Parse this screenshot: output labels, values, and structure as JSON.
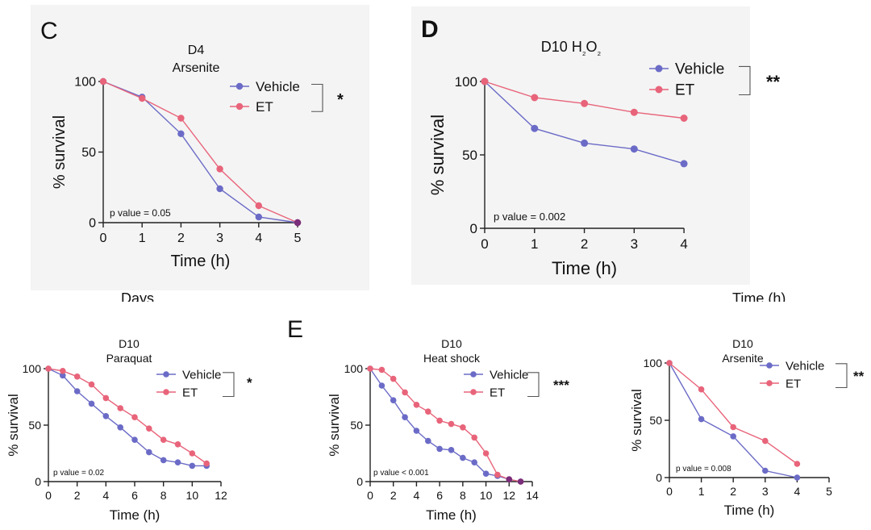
{
  "colors": {
    "vehicle": "#6b6bc7",
    "et": "#e8647a",
    "axis": "#222222",
    "overlap": "#7a2d7a"
  },
  "panel_labels": {
    "c": "C",
    "d": "D",
    "e": "E"
  },
  "cropped_labels": {
    "days": "Days",
    "time_h": "Time (h)"
  },
  "chart_data": [
    {
      "id": "C",
      "type": "line",
      "title": [
        "D4",
        "Arsenite"
      ],
      "xlabel": "Time (h)",
      "ylabel": "% survival",
      "xlim": [
        0,
        5
      ],
      "ylim": [
        0,
        100
      ],
      "xticks": [
        0,
        1,
        2,
        3,
        4,
        5
      ],
      "yticks": [
        0,
        50,
        100
      ],
      "legend": [
        "Vehicle",
        "ET"
      ],
      "significance": "*",
      "annotation": "p value = 0.05",
      "series": [
        {
          "name": "Vehicle",
          "x": [
            0,
            1,
            2,
            3,
            4,
            5
          ],
          "values": [
            100,
            89,
            63,
            24,
            4,
            0
          ]
        },
        {
          "name": "ET",
          "x": [
            0,
            1,
            2,
            3,
            4,
            5
          ],
          "values": [
            100,
            88,
            74,
            38,
            12,
            0
          ]
        }
      ]
    },
    {
      "id": "D",
      "type": "line",
      "title": [
        "D10 H₂O₂"
      ],
      "xlabel": "Time (h)",
      "ylabel": "% survival",
      "xlim": [
        0,
        4.5
      ],
      "ylim": [
        0,
        100
      ],
      "xticks": [
        0,
        1,
        2,
        3,
        4
      ],
      "yticks": [
        0,
        50,
        100
      ],
      "legend": [
        "Vehicle",
        "ET"
      ],
      "significance": "**",
      "annotation": "p value = 0.002",
      "series": [
        {
          "name": "Vehicle",
          "x": [
            0,
            1,
            2,
            3,
            4
          ],
          "values": [
            100,
            68,
            58,
            54,
            44
          ]
        },
        {
          "name": "ET",
          "x": [
            0,
            1,
            2,
            3,
            4
          ],
          "values": [
            100,
            89,
            85,
            79,
            75
          ]
        }
      ]
    },
    {
      "id": "E1",
      "type": "line",
      "title": [
        "D10",
        "Paraquat"
      ],
      "xlabel": "Time (h)",
      "ylabel": "% survival",
      "xlim": [
        0,
        12
      ],
      "ylim": [
        0,
        100
      ],
      "xticks": [
        0,
        2,
        4,
        6,
        8,
        10,
        12
      ],
      "yticks": [
        0,
        50,
        100
      ],
      "legend": [
        "Vehicle",
        "ET"
      ],
      "significance": "*",
      "annotation": "p value = 0.02",
      "series": [
        {
          "name": "Vehicle",
          "x": [
            0,
            1,
            2,
            3,
            4,
            5,
            6,
            7,
            8,
            9,
            10,
            11
          ],
          "values": [
            100,
            94,
            80,
            69,
            58,
            48,
            37,
            26,
            19,
            17,
            14,
            14
          ]
        },
        {
          "name": "ET",
          "x": [
            0,
            1,
            2,
            3,
            4,
            5,
            6,
            7,
            8,
            9,
            10,
            11
          ],
          "values": [
            100,
            98,
            93,
            86,
            74,
            65,
            57,
            47,
            37,
            33,
            25,
            16
          ]
        }
      ]
    },
    {
      "id": "E2",
      "type": "line",
      "title": [
        "D10",
        "Heat shock"
      ],
      "xlabel": "Time (h)",
      "ylabel": "% survival",
      "xlim": [
        0,
        14
      ],
      "ylim": [
        0,
        100
      ],
      "xticks": [
        0,
        2,
        4,
        6,
        8,
        10,
        12,
        14
      ],
      "yticks": [
        0,
        50,
        100
      ],
      "legend": [
        "Vehicle",
        "ET"
      ],
      "significance": "***",
      "annotation": "p value < 0.001",
      "series": [
        {
          "name": "Vehicle",
          "x": [
            0,
            1,
            2,
            3,
            4,
            5,
            6,
            7,
            8,
            9,
            10,
            11,
            12,
            13
          ],
          "values": [
            100,
            85,
            72,
            57,
            45,
            36,
            29,
            28,
            21,
            17,
            7,
            5,
            2,
            0
          ]
        },
        {
          "name": "ET",
          "x": [
            0,
            1,
            2,
            3,
            4,
            5,
            6,
            7,
            8,
            9,
            10,
            11,
            12,
            13
          ],
          "values": [
            100,
            99,
            91,
            79,
            68,
            62,
            54,
            51,
            48,
            39,
            25,
            6,
            2,
            0
          ]
        }
      ]
    },
    {
      "id": "E3",
      "type": "line",
      "title": [
        "D10",
        "Arsenite"
      ],
      "xlabel": "Time (h)",
      "ylabel": "% survival",
      "xlim": [
        0,
        5
      ],
      "ylim": [
        0,
        100
      ],
      "xticks": [
        0,
        1,
        2,
        3,
        4,
        5
      ],
      "yticks": [
        0,
        50,
        100
      ],
      "legend": [
        "Vehicle",
        "ET"
      ],
      "significance": "**",
      "annotation": "p value = 0.008",
      "series": [
        {
          "name": "Vehicle",
          "x": [
            0,
            1,
            2,
            3,
            4
          ],
          "values": [
            100,
            51,
            36,
            6,
            0
          ]
        },
        {
          "name": "ET",
          "x": [
            0,
            1,
            2,
            3,
            4
          ],
          "values": [
            100,
            77,
            44,
            32,
            12
          ]
        }
      ]
    }
  ]
}
